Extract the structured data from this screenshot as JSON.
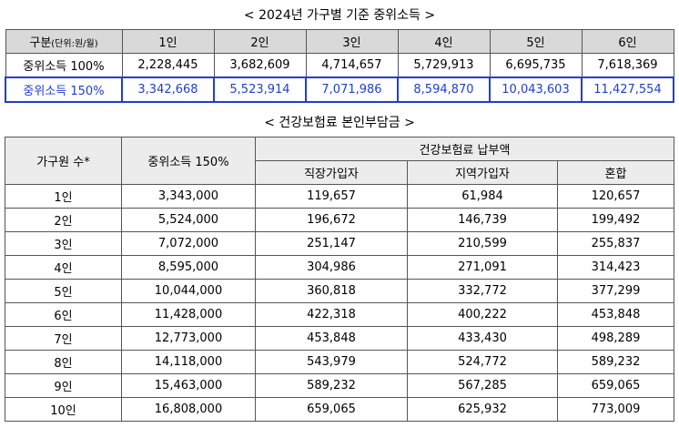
{
  "title1": "< 2024년 가구별 기준 중위소득 >",
  "table1": {
    "corner": "구분",
    "corner_unit": "(단위:원/월)",
    "headers": [
      "1인",
      "2인",
      "3인",
      "4인",
      "5인",
      "6인"
    ],
    "rows": [
      [
        "중위소득 100%",
        "2,228,445",
        "3,682,609",
        "4,714,657",
        "5,729,913",
        "6,695,735",
        "7,618,369"
      ],
      [
        "중위소득 150%",
        "3,342,668",
        "5,523,914",
        "7,071,986",
        "8,594,870",
        "10,043,603",
        "11,427,554"
      ]
    ]
  },
  "title2": "< 건강보험료 본인부담금 >",
  "table2": {
    "col1": "가구원 수*",
    "col2": "중위소득 150%",
    "group": "건강보험료 납부액",
    "subheaders": [
      "직장가입자",
      "지역가입자",
      "혼합"
    ],
    "rows": [
      [
        "1인",
        "3,343,000",
        "119,657",
        "61,984",
        "120,657"
      ],
      [
        "2인",
        "5,524,000",
        "196,672",
        "146,739",
        "199,492"
      ],
      [
        "3인",
        "7,072,000",
        "251,147",
        "210,599",
        "255,837"
      ],
      [
        "4인",
        "8,595,000",
        "304,986",
        "271,091",
        "314,423"
      ],
      [
        "5인",
        "10,044,000",
        "360,818",
        "332,772",
        "377,299"
      ],
      [
        "6인",
        "11,428,000",
        "422,318",
        "400,222",
        "453,848"
      ],
      [
        "7인",
        "12,773,000",
        "453,848",
        "433,430",
        "498,289"
      ],
      [
        "8인",
        "14,118,000",
        "543,979",
        "524,772",
        "589,232"
      ],
      [
        "9인",
        "15,463,000",
        "589,232",
        "567,285",
        "659,065"
      ],
      [
        "10인",
        "16,808,000",
        "659,065",
        "625,932",
        "773,009"
      ]
    ]
  }
}
